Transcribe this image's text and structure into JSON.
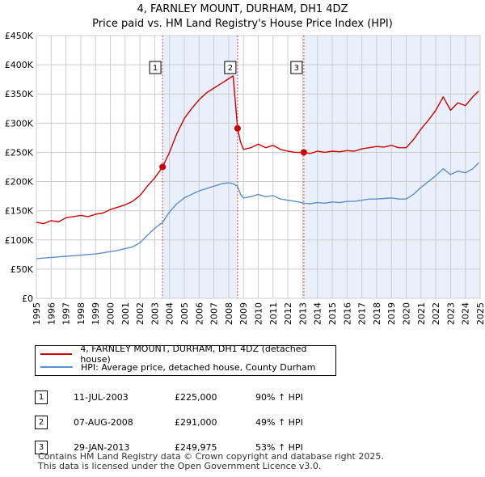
{
  "title_line1": "4, FARNLEY MOUNT, DURHAM, DH1 4DZ",
  "title_line2": "Price paid vs. HM Land Registry's House Price Index (HPI)",
  "chart_data": {
    "type": "line",
    "title": "4, FARNLEY MOUNT, DURHAM, DH1 4DZ",
    "subtitle": "Price paid vs. HM Land Registry's House Price Index (HPI)",
    "xlim": [
      1995,
      2025
    ],
    "ylim": [
      0,
      450000
    ],
    "ytick_values": [
      0,
      50000,
      100000,
      150000,
      200000,
      250000,
      300000,
      350000,
      400000,
      450000
    ],
    "ytick_labels": [
      "£0",
      "£50K",
      "£100K",
      "£150K",
      "£200K",
      "£250K",
      "£300K",
      "£350K",
      "£400K",
      "£450K"
    ],
    "xtick_labels": [
      "1995",
      "1996",
      "1997",
      "1998",
      "1999",
      "2000",
      "2001",
      "2002",
      "2003",
      "2004",
      "2005",
      "2006",
      "2007",
      "2008",
      "2009",
      "2010",
      "2011",
      "2012",
      "2013",
      "2014",
      "2015",
      "2016",
      "2017",
      "2018",
      "2019",
      "2020",
      "2021",
      "2022",
      "2023",
      "2024",
      "2025"
    ],
    "grid": true,
    "series": [
      {
        "name": "4, FARNLEY MOUNT, DURHAM, DH1 4DZ (detached house)",
        "color": "#cc0000",
        "x": [
          1995.0,
          1995.5,
          1996.0,
          1996.5,
          1997.0,
          1997.5,
          1998.0,
          1998.5,
          1999.0,
          1999.5,
          2000.0,
          2000.5,
          2001.0,
          2001.5,
          2002.0,
          2002.5,
          2003.0,
          2003.53,
          2004.0,
          2004.5,
          2005.0,
          2005.5,
          2006.0,
          2006.5,
          2007.0,
          2007.5,
          2008.0,
          2008.3,
          2008.6,
          2008.8,
          2009.0,
          2009.5,
          2010.0,
          2010.5,
          2011.0,
          2011.5,
          2012.0,
          2012.5,
          2013.08,
          2013.5,
          2014.0,
          2014.5,
          2015.0,
          2015.5,
          2016.0,
          2016.5,
          2017.0,
          2017.5,
          2018.0,
          2018.5,
          2019.0,
          2019.5,
          2020.0,
          2020.5,
          2021.0,
          2021.5,
          2022.0,
          2022.5,
          2023.0,
          2023.5,
          2024.0,
          2024.5,
          2024.9
        ],
        "values": [
          130000,
          128000,
          133000,
          131000,
          138000,
          140000,
          142000,
          140000,
          144000,
          146000,
          152000,
          156000,
          160000,
          166000,
          176000,
          192000,
          206000,
          225000,
          250000,
          282000,
          308000,
          325000,
          340000,
          352000,
          360000,
          368000,
          376000,
          381000,
          291000,
          268000,
          255000,
          258000,
          264000,
          258000,
          262000,
          255000,
          252000,
          250000,
          249975,
          248000,
          252000,
          250000,
          252000,
          251000,
          253000,
          252000,
          256000,
          258000,
          260000,
          259000,
          262000,
          258000,
          258000,
          272000,
          290000,
          305000,
          322000,
          345000,
          322000,
          335000,
          330000,
          345000,
          355000
        ]
      },
      {
        "name": "HPI: Average price, detached house, County Durham",
        "color": "#5b8fd0",
        "x": [
          1995.0,
          1995.5,
          1996.0,
          1996.5,
          1997.0,
          1997.5,
          1998.0,
          1998.5,
          1999.0,
          1999.5,
          2000.0,
          2000.5,
          2001.0,
          2001.5,
          2002.0,
          2002.5,
          2003.0,
          2003.53,
          2004.0,
          2004.5,
          2005.0,
          2005.5,
          2006.0,
          2006.5,
          2007.0,
          2007.5,
          2008.0,
          2008.3,
          2008.6,
          2008.8,
          2009.0,
          2009.5,
          2010.0,
          2010.5,
          2011.0,
          2011.5,
          2012.0,
          2012.5,
          2013.08,
          2013.5,
          2014.0,
          2014.5,
          2015.0,
          2015.5,
          2016.0,
          2016.5,
          2017.0,
          2017.5,
          2018.0,
          2018.5,
          2019.0,
          2019.5,
          2020.0,
          2020.5,
          2021.0,
          2021.5,
          2022.0,
          2022.5,
          2023.0,
          2023.5,
          2024.0,
          2024.5,
          2024.9
        ],
        "values": [
          68000,
          69000,
          70000,
          71000,
          72000,
          73000,
          74000,
          75000,
          76000,
          78000,
          80000,
          82000,
          85000,
          88000,
          95000,
          108000,
          120000,
          130000,
          148000,
          162000,
          172000,
          178000,
          184000,
          188000,
          192000,
          196000,
          198000,
          196000,
          192000,
          178000,
          172000,
          174000,
          178000,
          174000,
          176000,
          170000,
          168000,
          166000,
          163000,
          162000,
          164000,
          163000,
          165000,
          164000,
          166000,
          166000,
          168000,
          170000,
          170000,
          171000,
          172000,
          170000,
          170000,
          178000,
          190000,
          200000,
          210000,
          222000,
          212000,
          218000,
          215000,
          222000,
          232000
        ]
      }
    ],
    "sales": [
      {
        "label": "1",
        "x": 2003.53,
        "value": 225000
      },
      {
        "label": "2",
        "x": 2008.6,
        "value": 291000
      },
      {
        "label": "3",
        "x": 2013.08,
        "value": 249975
      }
    ]
  },
  "legend": {
    "property_label": "4, FARNLEY MOUNT, DURHAM, DH1 4DZ (detached house)",
    "hpi_label": "HPI: Average price, detached house, County Durham"
  },
  "sales_table": [
    {
      "num": "1",
      "date": "11-JUL-2003",
      "price": "£225,000",
      "hpi": "90% ↑ HPI"
    },
    {
      "num": "2",
      "date": "07-AUG-2008",
      "price": "£291,000",
      "hpi": "49% ↑ HPI"
    },
    {
      "num": "3",
      "date": "29-JAN-2013",
      "price": "£249,975",
      "hpi": "53% ↑ HPI"
    }
  ],
  "footer": {
    "line1": "Contains HM Land Registry data © Crown copyright and database right 2025.",
    "line2": "This data is licensed under the Open Government Licence v3.0."
  }
}
